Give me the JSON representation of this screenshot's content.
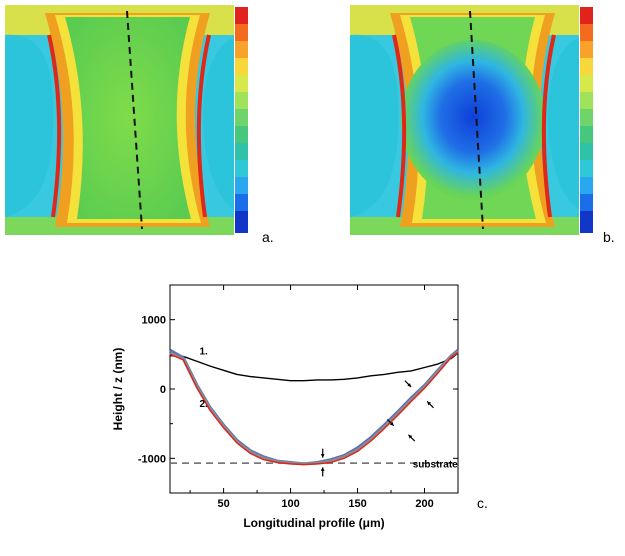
{
  "panels": {
    "a": {
      "label": "a."
    },
    "b": {
      "label": "b."
    },
    "c": {
      "label": "c."
    }
  },
  "colorbar_colors": [
    "#e0231c",
    "#f46a1e",
    "#f9a22a",
    "#f7d73a",
    "#d6e84a",
    "#9fe35a",
    "#6fd46a",
    "#46c77b",
    "#2fc2a8",
    "#2ec8d9",
    "#2aa8ef",
    "#1a6fe8",
    "#1236c8"
  ],
  "chart_data": {
    "type": "line",
    "xlabel": "Longitudinal profile (μm)",
    "ylabel": "Height / z (nm)",
    "xlim": [
      10,
      225
    ],
    "ylim": [
      -1500,
      1500
    ],
    "xticks": [
      50,
      100,
      150,
      200
    ],
    "yticks": [
      -1000,
      0,
      1000
    ],
    "xtick_labels": [
      "50",
      "100",
      "150",
      "200"
    ],
    "ytick_labels": [
      "-1000",
      "0",
      "1000"
    ],
    "annotations": [
      {
        "text": "1.",
        "x": 32,
        "y": 500
      },
      {
        "text": "2.",
        "x": 32,
        "y": -260
      },
      {
        "text": "substrate",
        "x": 208,
        "y": -1130
      }
    ],
    "substrate_level": -1070,
    "series": [
      {
        "color": "#000000",
        "x": [
          10,
          20,
          30,
          40,
          50,
          60,
          70,
          80,
          90,
          100,
          110,
          120,
          130,
          140,
          150,
          160,
          170,
          180,
          190,
          200,
          210,
          220,
          225
        ],
        "values": [
          480,
          470,
          400,
          330,
          270,
          210,
          180,
          160,
          140,
          120,
          120,
          130,
          130,
          140,
          160,
          190,
          210,
          240,
          260,
          310,
          360,
          440,
          520
        ]
      },
      {
        "color": "#5a6fb8",
        "x": [
          10,
          20,
          30,
          40,
          50,
          60,
          70,
          80,
          90,
          100,
          110,
          120,
          130,
          140,
          150,
          160,
          170,
          180,
          190,
          200,
          210,
          220,
          225
        ],
        "values": [
          560,
          450,
          60,
          -270,
          -520,
          -740,
          -890,
          -980,
          -1040,
          -1060,
          -1080,
          -1060,
          -1020,
          -960,
          -850,
          -700,
          -520,
          -330,
          -130,
          50,
          270,
          480,
          560
        ]
      },
      {
        "color": "#8c8c8c",
        "x": [
          10,
          20,
          30,
          40,
          50,
          60,
          70,
          80,
          90,
          100,
          110,
          120,
          130,
          140,
          150,
          160,
          170,
          180,
          190,
          200,
          210,
          220,
          225
        ],
        "values": [
          520,
          430,
          40,
          -290,
          -540,
          -760,
          -910,
          -1000,
          -1050,
          -1070,
          -1080,
          -1070,
          -1040,
          -980,
          -880,
          -730,
          -550,
          -360,
          -160,
          30,
          250,
          470,
          540
        ]
      },
      {
        "color": "#e0231c",
        "x": [
          10,
          20,
          30,
          40,
          50,
          60,
          70,
          80,
          90,
          100,
          110,
          120,
          130,
          140,
          150,
          160,
          170,
          180,
          190,
          200,
          210,
          220,
          225
        ],
        "values": [
          500,
          420,
          20,
          -310,
          -560,
          -780,
          -930,
          -1020,
          -1060,
          -1080,
          -1090,
          -1080,
          -1060,
          -1000,
          -900,
          -750,
          -570,
          -380,
          -180,
          10,
          230,
          460,
          530
        ]
      }
    ],
    "arrows": [
      {
        "x": 124,
        "y": -990,
        "dir": "down"
      },
      {
        "x": 124,
        "y": -1130,
        "dir": "up"
      },
      {
        "x": 177,
        "y": -530,
        "dir": "down-right"
      },
      {
        "x": 188,
        "y": -660,
        "dir": "up-left"
      },
      {
        "x": 190,
        "y": 30,
        "dir": "down-right"
      },
      {
        "x": 202,
        "y": -180,
        "dir": "up-left"
      }
    ]
  }
}
